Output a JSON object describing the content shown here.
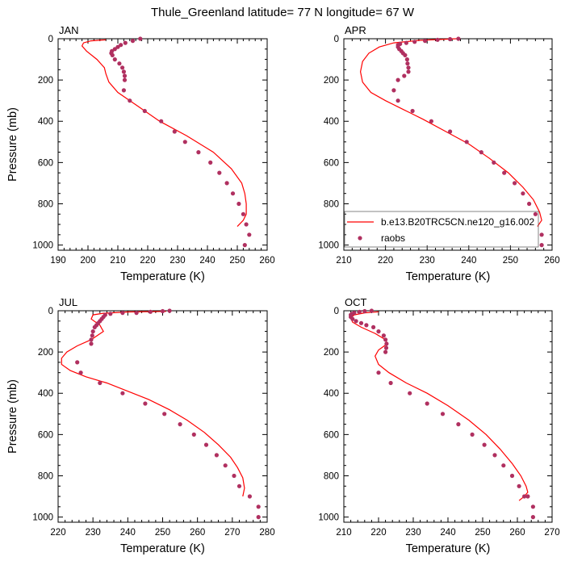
{
  "figure": {
    "title": "Thule_Greenland  latitude= 77 N longitude= 67 W"
  },
  "legend": {
    "placement": "inside APR panel, lower",
    "entries": [
      {
        "label": "b.e13.B20TRC5CN.ne120_g16.002",
        "kind": "line",
        "color": "#ff0000"
      },
      {
        "label": "raobs",
        "kind": "marker",
        "color": "#b03060"
      }
    ]
  },
  "chart_data": [
    {
      "type": "line",
      "panel": "JAN",
      "label": "JAN",
      "xlabel": "Temperature (K)",
      "ylabel": "Pressure (mb)",
      "xlim": [
        190,
        260
      ],
      "ylim": [
        0,
        1025
      ],
      "y_inverted": true,
      "xticks": [
        190,
        200,
        210,
        220,
        230,
        240,
        250,
        260
      ],
      "yticks": [
        0,
        200,
        400,
        600,
        800,
        1000
      ],
      "grid": false,
      "series": [
        {
          "name": "b.e13.B20TRC5CN.ne120_g16.002",
          "style": "line",
          "color": "#ff0000",
          "x": [
            206,
            201,
            198.5,
            198,
            199.5,
            203,
            205.5,
            206,
            207,
            210,
            216,
            224,
            233,
            242,
            248,
            251.5,
            252.5,
            253,
            253,
            252,
            250
          ],
          "y": [
            5,
            10,
            20,
            35,
            60,
            100,
            140,
            170,
            210,
            260,
            320,
            400,
            470,
            550,
            630,
            700,
            750,
            800,
            850,
            880,
            910
          ]
        },
        {
          "name": "raobs",
          "style": "markers",
          "color": "#b03060",
          "x": [
            217.5,
            215,
            212.5,
            211,
            210,
            209,
            208,
            207.8,
            208.2,
            209,
            210.5,
            211.5,
            212,
            212.3,
            212.3,
            212,
            214,
            219,
            224.5,
            229,
            232.5,
            237,
            241,
            244,
            246.5,
            248.5,
            250.5,
            252,
            253,
            254,
            252.5
          ],
          "y": [
            0,
            10,
            20,
            30,
            40,
            50,
            60,
            70,
            80,
            100,
            120,
            140,
            160,
            180,
            200,
            250,
            300,
            350,
            400,
            450,
            500,
            550,
            600,
            650,
            700,
            750,
            800,
            850,
            900,
            950,
            1000
          ]
        }
      ]
    },
    {
      "type": "line",
      "panel": "APR",
      "label": "APR",
      "xlabel": "Temperature (K)",
      "ylabel": "",
      "xlim": [
        210,
        260
      ],
      "ylim": [
        0,
        1025
      ],
      "y_inverted": true,
      "xticks": [
        210,
        220,
        230,
        240,
        250,
        260
      ],
      "yticks": [
        0,
        200,
        400,
        600,
        800,
        1000
      ],
      "grid": false,
      "series": [
        {
          "name": "b.e13.B20TRC5CN.ne120_g16.002",
          "style": "line",
          "color": "#ff0000",
          "x": [
            237,
            228,
            222,
            218.5,
            216,
            214.5,
            214,
            214.5,
            216.5,
            220,
            224,
            229,
            234.5,
            240,
            245,
            249.5,
            253,
            255.5,
            257,
            257.5,
            256.5
          ],
          "y": [
            0,
            8,
            20,
            40,
            70,
            110,
            160,
            210,
            260,
            300,
            340,
            390,
            450,
            510,
            580,
            650,
            720,
            780,
            840,
            880,
            910
          ]
        },
        {
          "name": "raobs",
          "style": "markers",
          "color": "#b03060",
          "x": [
            237.5,
            235.5,
            232.5,
            229.5,
            227,
            225,
            223.5,
            223,
            223,
            223.3,
            223.8,
            224.2,
            224.7,
            225.2,
            225.3,
            225.5,
            225.5,
            224.5,
            223,
            222,
            223,
            226.5,
            231,
            235.5,
            239.5,
            243,
            246,
            248.5,
            251,
            253,
            254.5,
            256,
            257.5,
            257.5
          ],
          "y": [
            0,
            2,
            5,
            10,
            15,
            20,
            25,
            30,
            40,
            50,
            60,
            70,
            80,
            100,
            120,
            140,
            160,
            180,
            200,
            250,
            300,
            350,
            400,
            450,
            500,
            550,
            600,
            650,
            700,
            750,
            800,
            850,
            950,
            1000
          ]
        }
      ]
    },
    {
      "type": "line",
      "panel": "JUL",
      "label": "JUL",
      "xlabel": "Temperature (K)",
      "ylabel": "Pressure (mb)",
      "xlim": [
        220,
        280
      ],
      "ylim": [
        0,
        1025
      ],
      "y_inverted": true,
      "xticks": [
        220,
        230,
        240,
        250,
        260,
        270,
        280
      ],
      "yticks": [
        0,
        200,
        400,
        600,
        800,
        1000
      ],
      "grid": false,
      "series": [
        {
          "name": "b.e13.B20TRC5CN.ne120_g16.002",
          "style": "line",
          "color": "#ff0000",
          "x": [
            251,
            240,
            233,
            230,
            229.5,
            232,
            233,
            229.5,
            225.5,
            222.5,
            221,
            221,
            223.5,
            228,
            234,
            240,
            246,
            252,
            257,
            262,
            266,
            269.5,
            271.5,
            273,
            273.5,
            273
          ],
          "y": [
            3,
            6,
            12,
            20,
            40,
            70,
            100,
            140,
            170,
            200,
            230,
            260,
            290,
            320,
            350,
            390,
            430,
            480,
            530,
            590,
            650,
            710,
            760,
            810,
            860,
            900
          ]
        },
        {
          "name": "raobs",
          "style": "markers",
          "color": "#b03060",
          "x": [
            252,
            250,
            246.5,
            242.5,
            238.5,
            235,
            233.5,
            233,
            232.5,
            232,
            231.5,
            231,
            230.5,
            230,
            229.8,
            229.5,
            229.5,
            225.5,
            226.5,
            232,
            238.5,
            245,
            250.5,
            255,
            259,
            262.5,
            265.5,
            268,
            270.5,
            272,
            275,
            277.5,
            277.5
          ],
          "y": [
            0,
            2,
            5,
            10,
            10,
            15,
            20,
            30,
            40,
            50,
            60,
            70,
            80,
            100,
            120,
            140,
            160,
            250,
            300,
            350,
            400,
            450,
            500,
            550,
            600,
            650,
            700,
            750,
            800,
            850,
            900,
            950,
            1000
          ]
        }
      ]
    },
    {
      "type": "line",
      "panel": "OCT",
      "label": "OCT",
      "xlabel": "Temperature (K)",
      "ylabel": "",
      "xlim": [
        210,
        270
      ],
      "ylim": [
        0,
        1025
      ],
      "y_inverted": true,
      "xticks": [
        210,
        220,
        230,
        240,
        250,
        260,
        270
      ],
      "yticks": [
        0,
        200,
        400,
        600,
        800,
        1000
      ],
      "grid": false,
      "series": [
        {
          "name": "b.e13.B20TRC5CN.ne120_g16.002",
          "style": "line",
          "color": "#ff0000",
          "x": [
            220,
            216,
            213,
            212,
            212.5,
            215,
            219,
            222,
            222.5,
            220,
            219,
            220,
            223,
            228,
            234,
            240,
            246,
            251,
            255,
            258.5,
            261,
            262.5,
            263,
            262,
            260.5
          ],
          "y": [
            5,
            10,
            20,
            35,
            55,
            80,
            110,
            140,
            160,
            190,
            220,
            260,
            300,
            350,
            400,
            460,
            530,
            600,
            670,
            740,
            800,
            850,
            880,
            900,
            920
          ]
        },
        {
          "name": "raobs",
          "style": "markers",
          "color": "#b03060",
          "x": [
            218,
            216,
            214.5,
            213,
            212.3,
            212,
            212,
            212.5,
            213.5,
            215,
            216.5,
            218.5,
            220,
            221.5,
            222,
            222.3,
            222.2,
            222,
            220,
            223.5,
            229,
            234,
            238.5,
            243,
            247,
            250.5,
            253.5,
            256,
            258.5,
            260.5,
            262,
            263,
            264.5,
            264.5
          ],
          "y": [
            0,
            2,
            5,
            10,
            15,
            20,
            30,
            40,
            50,
            60,
            70,
            80,
            100,
            120,
            140,
            160,
            180,
            200,
            300,
            350,
            400,
            450,
            500,
            550,
            600,
            650,
            700,
            750,
            800,
            850,
            900,
            900,
            950,
            1000
          ]
        }
      ]
    }
  ]
}
